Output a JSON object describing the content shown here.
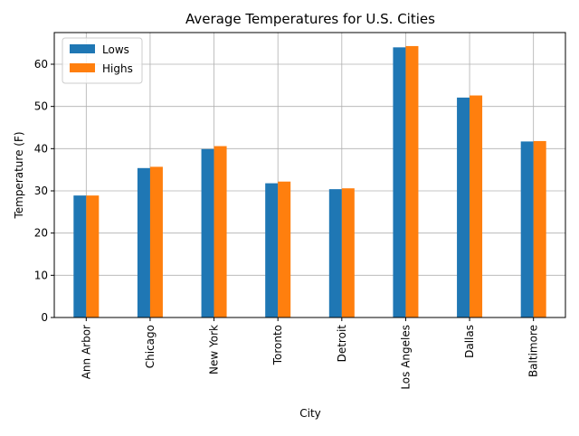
{
  "chart_data": {
    "type": "bar",
    "title": "Average Temperatures for U.S. Cities",
    "xlabel": "City",
    "ylabel": "Temperature (F)",
    "categories": [
      "Ann Arbor",
      "Chicago",
      "New York",
      "Toronto",
      "Detroit",
      "Los Angeles",
      "Dallas",
      "Baltimore"
    ],
    "series": [
      {
        "name": "Lows",
        "color": "#1f77b4",
        "values": [
          28.9,
          35.4,
          39.9,
          31.8,
          30.4,
          64.0,
          52.1,
          41.7
        ]
      },
      {
        "name": "Highs",
        "color": "#ff7f0e",
        "values": [
          28.9,
          35.7,
          40.6,
          32.2,
          30.6,
          64.3,
          52.6,
          41.8
        ]
      }
    ],
    "ylim": [
      0,
      67.5
    ],
    "yticks": [
      0,
      10,
      20,
      30,
      40,
      50,
      60
    ],
    "grid": true,
    "legend_position": "top-left"
  }
}
